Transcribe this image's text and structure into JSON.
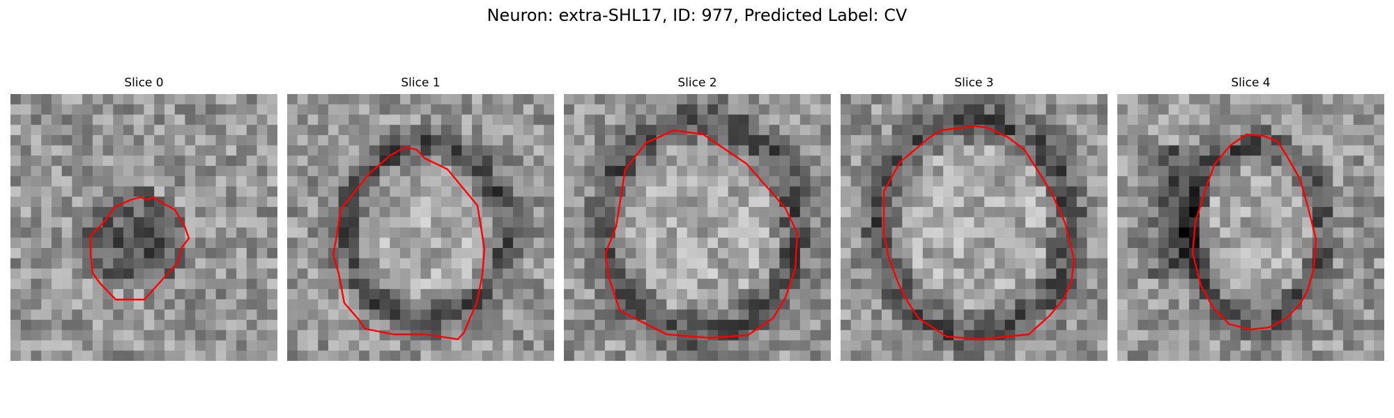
{
  "figure": {
    "title": "Neuron: extra-SHL17, ID: 977, Predicted Label: CV"
  },
  "slices": [
    {
      "label": "Slice 0"
    },
    {
      "label": "Slice 1"
    },
    {
      "label": "Slice 2"
    },
    {
      "label": "Slice 3"
    },
    {
      "label": "Slice 4"
    }
  ],
  "colors": {
    "contour": "#ff0000",
    "background": "#ffffff"
  }
}
